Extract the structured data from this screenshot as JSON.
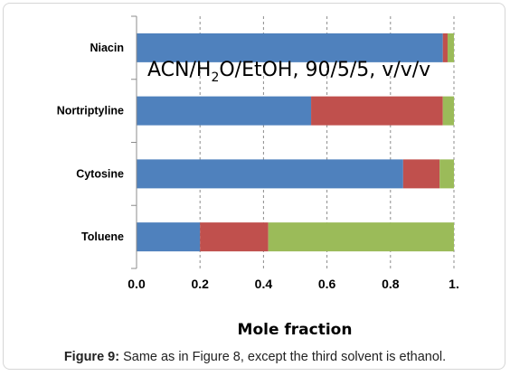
{
  "chart_data": {
    "type": "bar",
    "orientation": "horizontal",
    "stacked": true,
    "annotation": {
      "main": "ACN/H",
      "sub": "2",
      "rest": "O/EtOH, 90/5/5, v/v/v"
    },
    "categories": [
      "Niacin",
      "Nortriptyline",
      "Cytosine",
      "Toluene"
    ],
    "series": [
      {
        "color": "#4f81bd",
        "values": [
          0.965,
          0.55,
          0.84,
          0.2
        ]
      },
      {
        "color": "#c0504d",
        "values": [
          0.015,
          0.415,
          0.115,
          0.215
        ]
      },
      {
        "color": "#9bbb59",
        "values": [
          0.02,
          0.035,
          0.045,
          0.585
        ]
      }
    ],
    "xlabel": "Mole fraction",
    "xlim": [
      0,
      1
    ],
    "xticks": [
      "0.0",
      "0.2",
      "0.4",
      "0.6",
      "0.8",
      "1."
    ],
    "grid": "vertical dashed"
  },
  "caption": {
    "label": "Figure 9:",
    "text": " Same as in Figure 8, except the third solvent is ethanol."
  }
}
